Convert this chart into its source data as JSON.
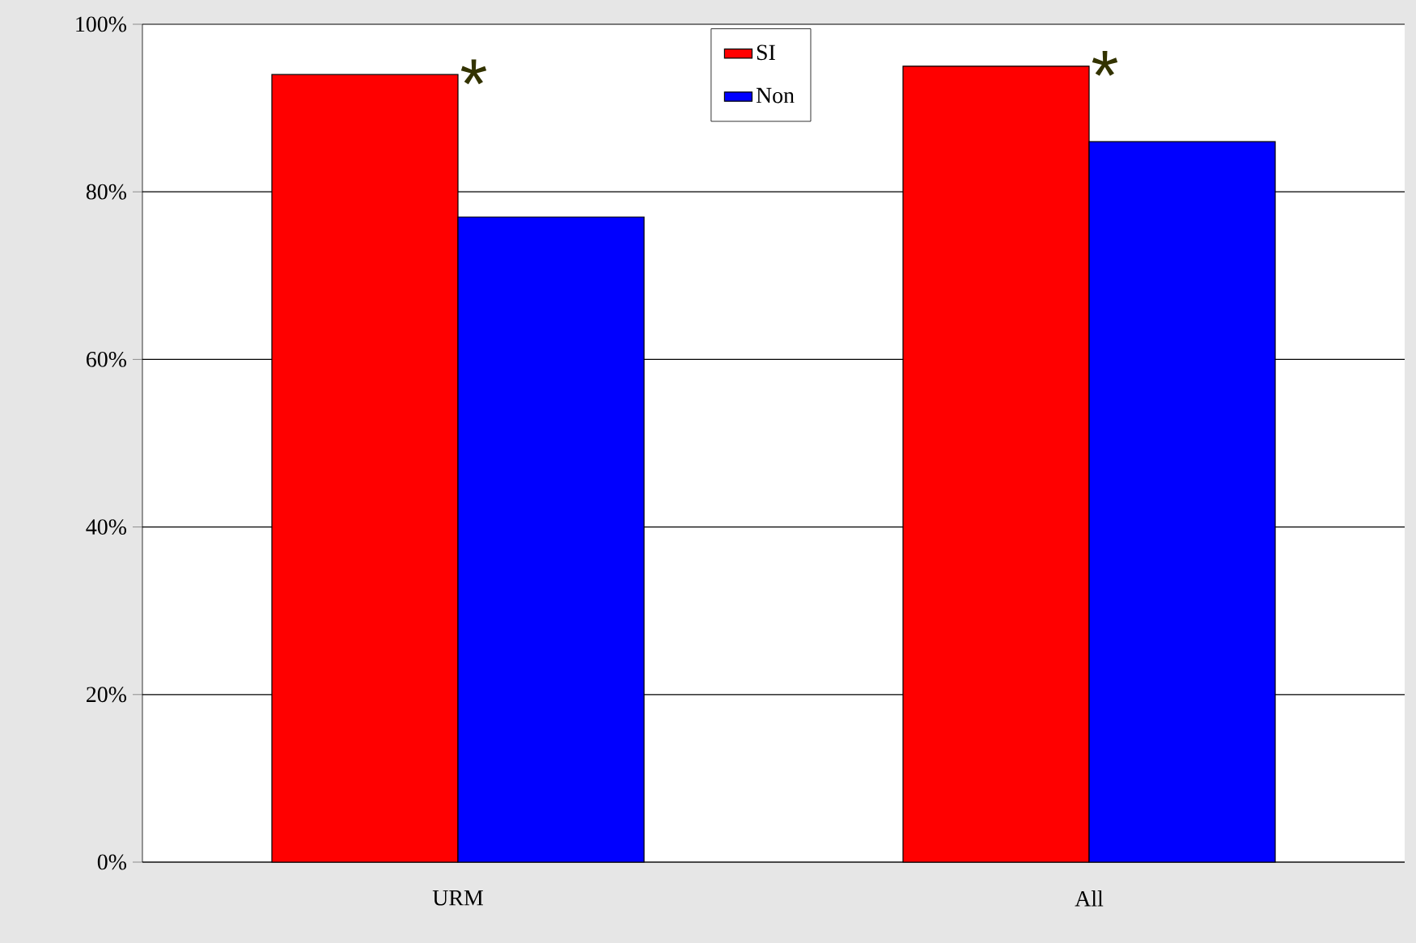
{
  "chart_data": {
    "type": "bar",
    "categories": [
      "URM",
      "All"
    ],
    "series": [
      {
        "name": "SI",
        "color": "#ff0000",
        "values": [
          94,
          95
        ]
      },
      {
        "name": "Non",
        "color": "#0000ff",
        "values": [
          77,
          86
        ]
      }
    ],
    "ylim": [
      0,
      100
    ],
    "yticks": [
      {
        "value": 0,
        "label": "0%"
      },
      {
        "value": 20,
        "label": "20%"
      },
      {
        "value": 40,
        "label": "40%"
      },
      {
        "value": 60,
        "label": "60%"
      },
      {
        "value": 80,
        "label": "80%"
      },
      {
        "value": 100,
        "label": "100%"
      }
    ],
    "grid": "y",
    "legend": "top",
    "annotations": [
      {
        "text": "*",
        "x": "URM",
        "y": 94
      },
      {
        "text": "*",
        "x": "All",
        "y": 95
      }
    ]
  }
}
